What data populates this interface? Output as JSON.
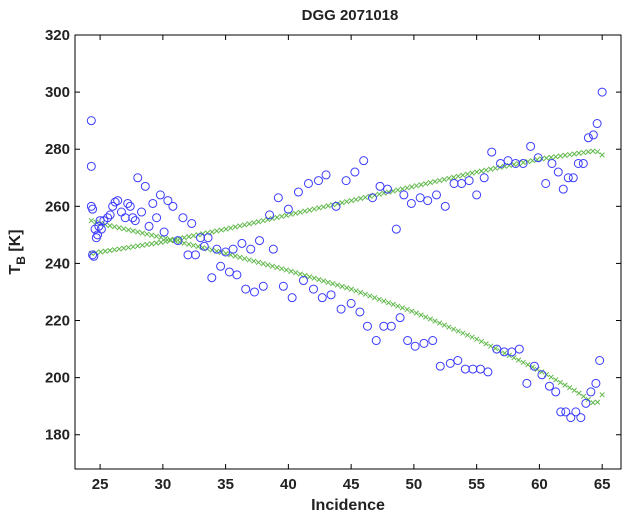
{
  "chart_data": {
    "type": "scatter",
    "title": "DGG 2071018",
    "xlabel": "Incidence",
    "ylabel_main": "T",
    "ylabel_sub": "B",
    "ylabel_unit": " [K]",
    "xlim": [
      23,
      66.5
    ],
    "ylim": [
      168,
      320
    ],
    "xticks": [
      25,
      30,
      35,
      40,
      45,
      50,
      55,
      60,
      65
    ],
    "yticks": [
      180,
      200,
      220,
      240,
      260,
      280,
      300,
      320
    ],
    "grid": false,
    "colors": {
      "observed": "#3b3bff",
      "model": "#5fb84a"
    },
    "series": [
      {
        "marker": "circle",
        "points": [
          [
            24.3,
            290
          ],
          [
            24.3,
            274
          ],
          [
            24.3,
            260
          ],
          [
            24.4,
            259
          ],
          [
            24.4,
            243
          ],
          [
            24.5,
            242.5
          ],
          [
            24.6,
            252
          ],
          [
            24.7,
            249
          ],
          [
            24.8,
            250
          ],
          [
            24.9,
            253
          ],
          [
            25.0,
            255
          ],
          [
            25.1,
            252
          ],
          [
            25.3,
            255
          ],
          [
            25.6,
            256
          ],
          [
            25.8,
            257
          ],
          [
            26.0,
            260
          ],
          [
            26.2,
            261.5
          ],
          [
            26.4,
            262
          ],
          [
            26.7,
            258
          ],
          [
            27.0,
            256
          ],
          [
            27.2,
            261
          ],
          [
            27.4,
            260
          ],
          [
            27.6,
            256
          ],
          [
            27.8,
            255
          ],
          [
            28.0,
            270
          ],
          [
            28.3,
            258
          ],
          [
            28.6,
            267
          ],
          [
            28.9,
            253
          ],
          [
            29.2,
            261
          ],
          [
            29.5,
            256
          ],
          [
            29.8,
            264
          ],
          [
            30.1,
            251
          ],
          [
            30.4,
            262
          ],
          [
            30.8,
            260
          ],
          [
            31.2,
            248
          ],
          [
            31.6,
            256
          ],
          [
            32.0,
            243
          ],
          [
            32.3,
            254
          ],
          [
            32.6,
            243
          ],
          [
            33.0,
            249
          ],
          [
            33.3,
            246
          ],
          [
            33.6,
            249
          ],
          [
            33.9,
            235
          ],
          [
            34.3,
            245
          ],
          [
            34.6,
            239
          ],
          [
            35.0,
            244
          ],
          [
            35.3,
            237
          ],
          [
            35.6,
            245
          ],
          [
            35.9,
            236
          ],
          [
            36.3,
            247
          ],
          [
            36.6,
            231
          ],
          [
            37.0,
            245
          ],
          [
            37.3,
            230
          ],
          [
            37.7,
            248
          ],
          [
            38.0,
            232
          ],
          [
            38.5,
            257
          ],
          [
            38.8,
            245
          ],
          [
            39.2,
            263
          ],
          [
            39.6,
            232
          ],
          [
            40.0,
            259
          ],
          [
            40.3,
            228
          ],
          [
            40.8,
            265
          ],
          [
            41.2,
            234
          ],
          [
            41.6,
            268
          ],
          [
            42.0,
            231
          ],
          [
            42.4,
            269
          ],
          [
            42.7,
            228
          ],
          [
            43.0,
            271
          ],
          [
            43.4,
            229
          ],
          [
            43.8,
            260
          ],
          [
            44.2,
            224
          ],
          [
            44.6,
            269
          ],
          [
            45.0,
            226
          ],
          [
            45.3,
            272
          ],
          [
            45.7,
            223
          ],
          [
            46.0,
            276
          ],
          [
            46.3,
            218
          ],
          [
            46.7,
            263
          ],
          [
            47.0,
            213
          ],
          [
            47.3,
            267
          ],
          [
            47.6,
            218
          ],
          [
            47.9,
            266
          ],
          [
            48.2,
            218
          ],
          [
            48.6,
            252
          ],
          [
            48.9,
            221
          ],
          [
            49.2,
            264
          ],
          [
            49.5,
            213
          ],
          [
            49.8,
            261
          ],
          [
            50.1,
            211
          ],
          [
            50.5,
            263
          ],
          [
            50.8,
            212
          ],
          [
            51.1,
            262
          ],
          [
            51.5,
            213
          ],
          [
            51.8,
            264
          ],
          [
            52.1,
            204
          ],
          [
            52.5,
            260
          ],
          [
            52.9,
            205
          ],
          [
            53.2,
            268
          ],
          [
            53.5,
            206
          ],
          [
            53.8,
            268
          ],
          [
            54.1,
            203
          ],
          [
            54.4,
            269
          ],
          [
            54.7,
            203
          ],
          [
            55.0,
            264
          ],
          [
            55.3,
            203
          ],
          [
            55.6,
            270
          ],
          [
            55.9,
            202
          ],
          [
            56.2,
            279
          ],
          [
            56.6,
            210
          ],
          [
            56.9,
            275
          ],
          [
            57.2,
            209
          ],
          [
            57.5,
            276
          ],
          [
            57.8,
            209
          ],
          [
            58.1,
            275
          ],
          [
            58.4,
            210
          ],
          [
            58.7,
            275
          ],
          [
            59.0,
            198
          ],
          [
            59.3,
            281
          ],
          [
            59.6,
            204
          ],
          [
            59.9,
            277
          ],
          [
            60.2,
            201
          ],
          [
            60.5,
            268
          ],
          [
            60.8,
            197
          ],
          [
            61.0,
            275
          ],
          [
            61.3,
            195
          ],
          [
            61.5,
            272
          ],
          [
            61.7,
            188
          ],
          [
            61.9,
            266
          ],
          [
            62.1,
            188
          ],
          [
            62.3,
            270
          ],
          [
            62.5,
            186
          ],
          [
            62.7,
            270
          ],
          [
            62.9,
            188
          ],
          [
            63.1,
            275
          ],
          [
            63.3,
            186
          ],
          [
            63.5,
            275
          ],
          [
            63.7,
            191
          ],
          [
            63.9,
            284
          ],
          [
            64.1,
            195
          ],
          [
            64.3,
            285
          ],
          [
            64.5,
            198
          ],
          [
            64.6,
            289
          ],
          [
            64.8,
            206
          ],
          [
            65.0,
            300
          ]
        ]
      },
      {
        "marker": "x",
        "upper_curve": [
          [
            24.3,
            243.5
          ],
          [
            30,
            247.5
          ],
          [
            35,
            252
          ],
          [
            40,
            257
          ],
          [
            45,
            262
          ],
          [
            50,
            267
          ],
          [
            55,
            272
          ],
          [
            60,
            276.5
          ],
          [
            63,
            278.5
          ],
          [
            64.5,
            279.5
          ],
          [
            65,
            278
          ]
        ],
        "lower_curve": [
          [
            24.3,
            255
          ],
          [
            25,
            254
          ],
          [
            30,
            249
          ],
          [
            35,
            243.5
          ],
          [
            40,
            237.5
          ],
          [
            45,
            231
          ],
          [
            50,
            223
          ],
          [
            55,
            213.5
          ],
          [
            60,
            202.5
          ],
          [
            63,
            195
          ],
          [
            64.5,
            190.5
          ],
          [
            65,
            194
          ]
        ]
      }
    ]
  }
}
